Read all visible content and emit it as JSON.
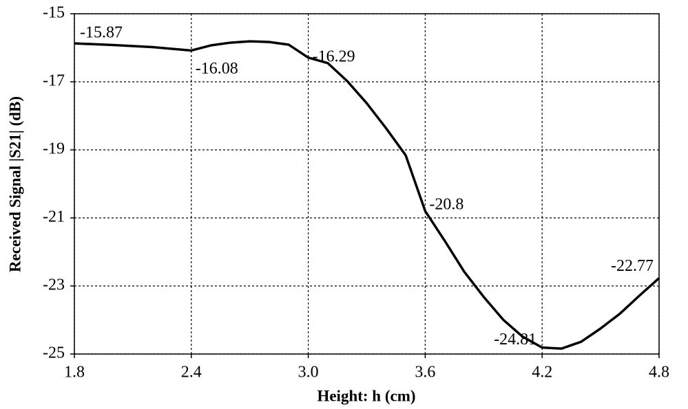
{
  "chart_data": {
    "type": "line",
    "x_label": "Height: h (cm)",
    "y_label": "Received Signal |S21| (dB)",
    "x": [
      1.8,
      2.0,
      2.2,
      2.4,
      2.5,
      2.6,
      2.7,
      2.8,
      2.9,
      3.0,
      3.1,
      3.2,
      3.3,
      3.4,
      3.5,
      3.6,
      3.7,
      3.8,
      3.9,
      4.0,
      4.1,
      4.2,
      4.3,
      4.4,
      4.5,
      4.6,
      4.7,
      4.8
    ],
    "series": [
      {
        "color": "#000000",
        "values": [
          -15.87,
          -15.92,
          -15.98,
          -16.08,
          -15.93,
          -15.85,
          -15.81,
          -15.83,
          -15.91,
          -16.29,
          -16.45,
          -16.98,
          -17.63,
          -18.37,
          -19.16,
          -20.8,
          -21.67,
          -22.58,
          -23.32,
          -23.99,
          -24.49,
          -24.81,
          -24.84,
          -24.64,
          -24.25,
          -23.81,
          -23.28,
          -22.77
        ],
        "value_labels": [
          "-15.87",
          null,
          null,
          "-16.08",
          null,
          null,
          null,
          null,
          null,
          "-16.29",
          null,
          null,
          null,
          null,
          null,
          "-20.8",
          null,
          null,
          null,
          null,
          null,
          "-24.81",
          null,
          null,
          null,
          null,
          null,
          "-22.77"
        ]
      }
    ],
    "xlim": [
      1.8,
      4.8
    ],
    "xticks": [
      1.8,
      2.4,
      {
        "value": 3,
        "label": "3.0"
      },
      3.6,
      4.2,
      4.8
    ],
    "ylim": [
      -25,
      -15
    ],
    "yticks": [
      -15,
      -17,
      -19,
      -21,
      -23,
      -25
    ],
    "grid": true
  }
}
